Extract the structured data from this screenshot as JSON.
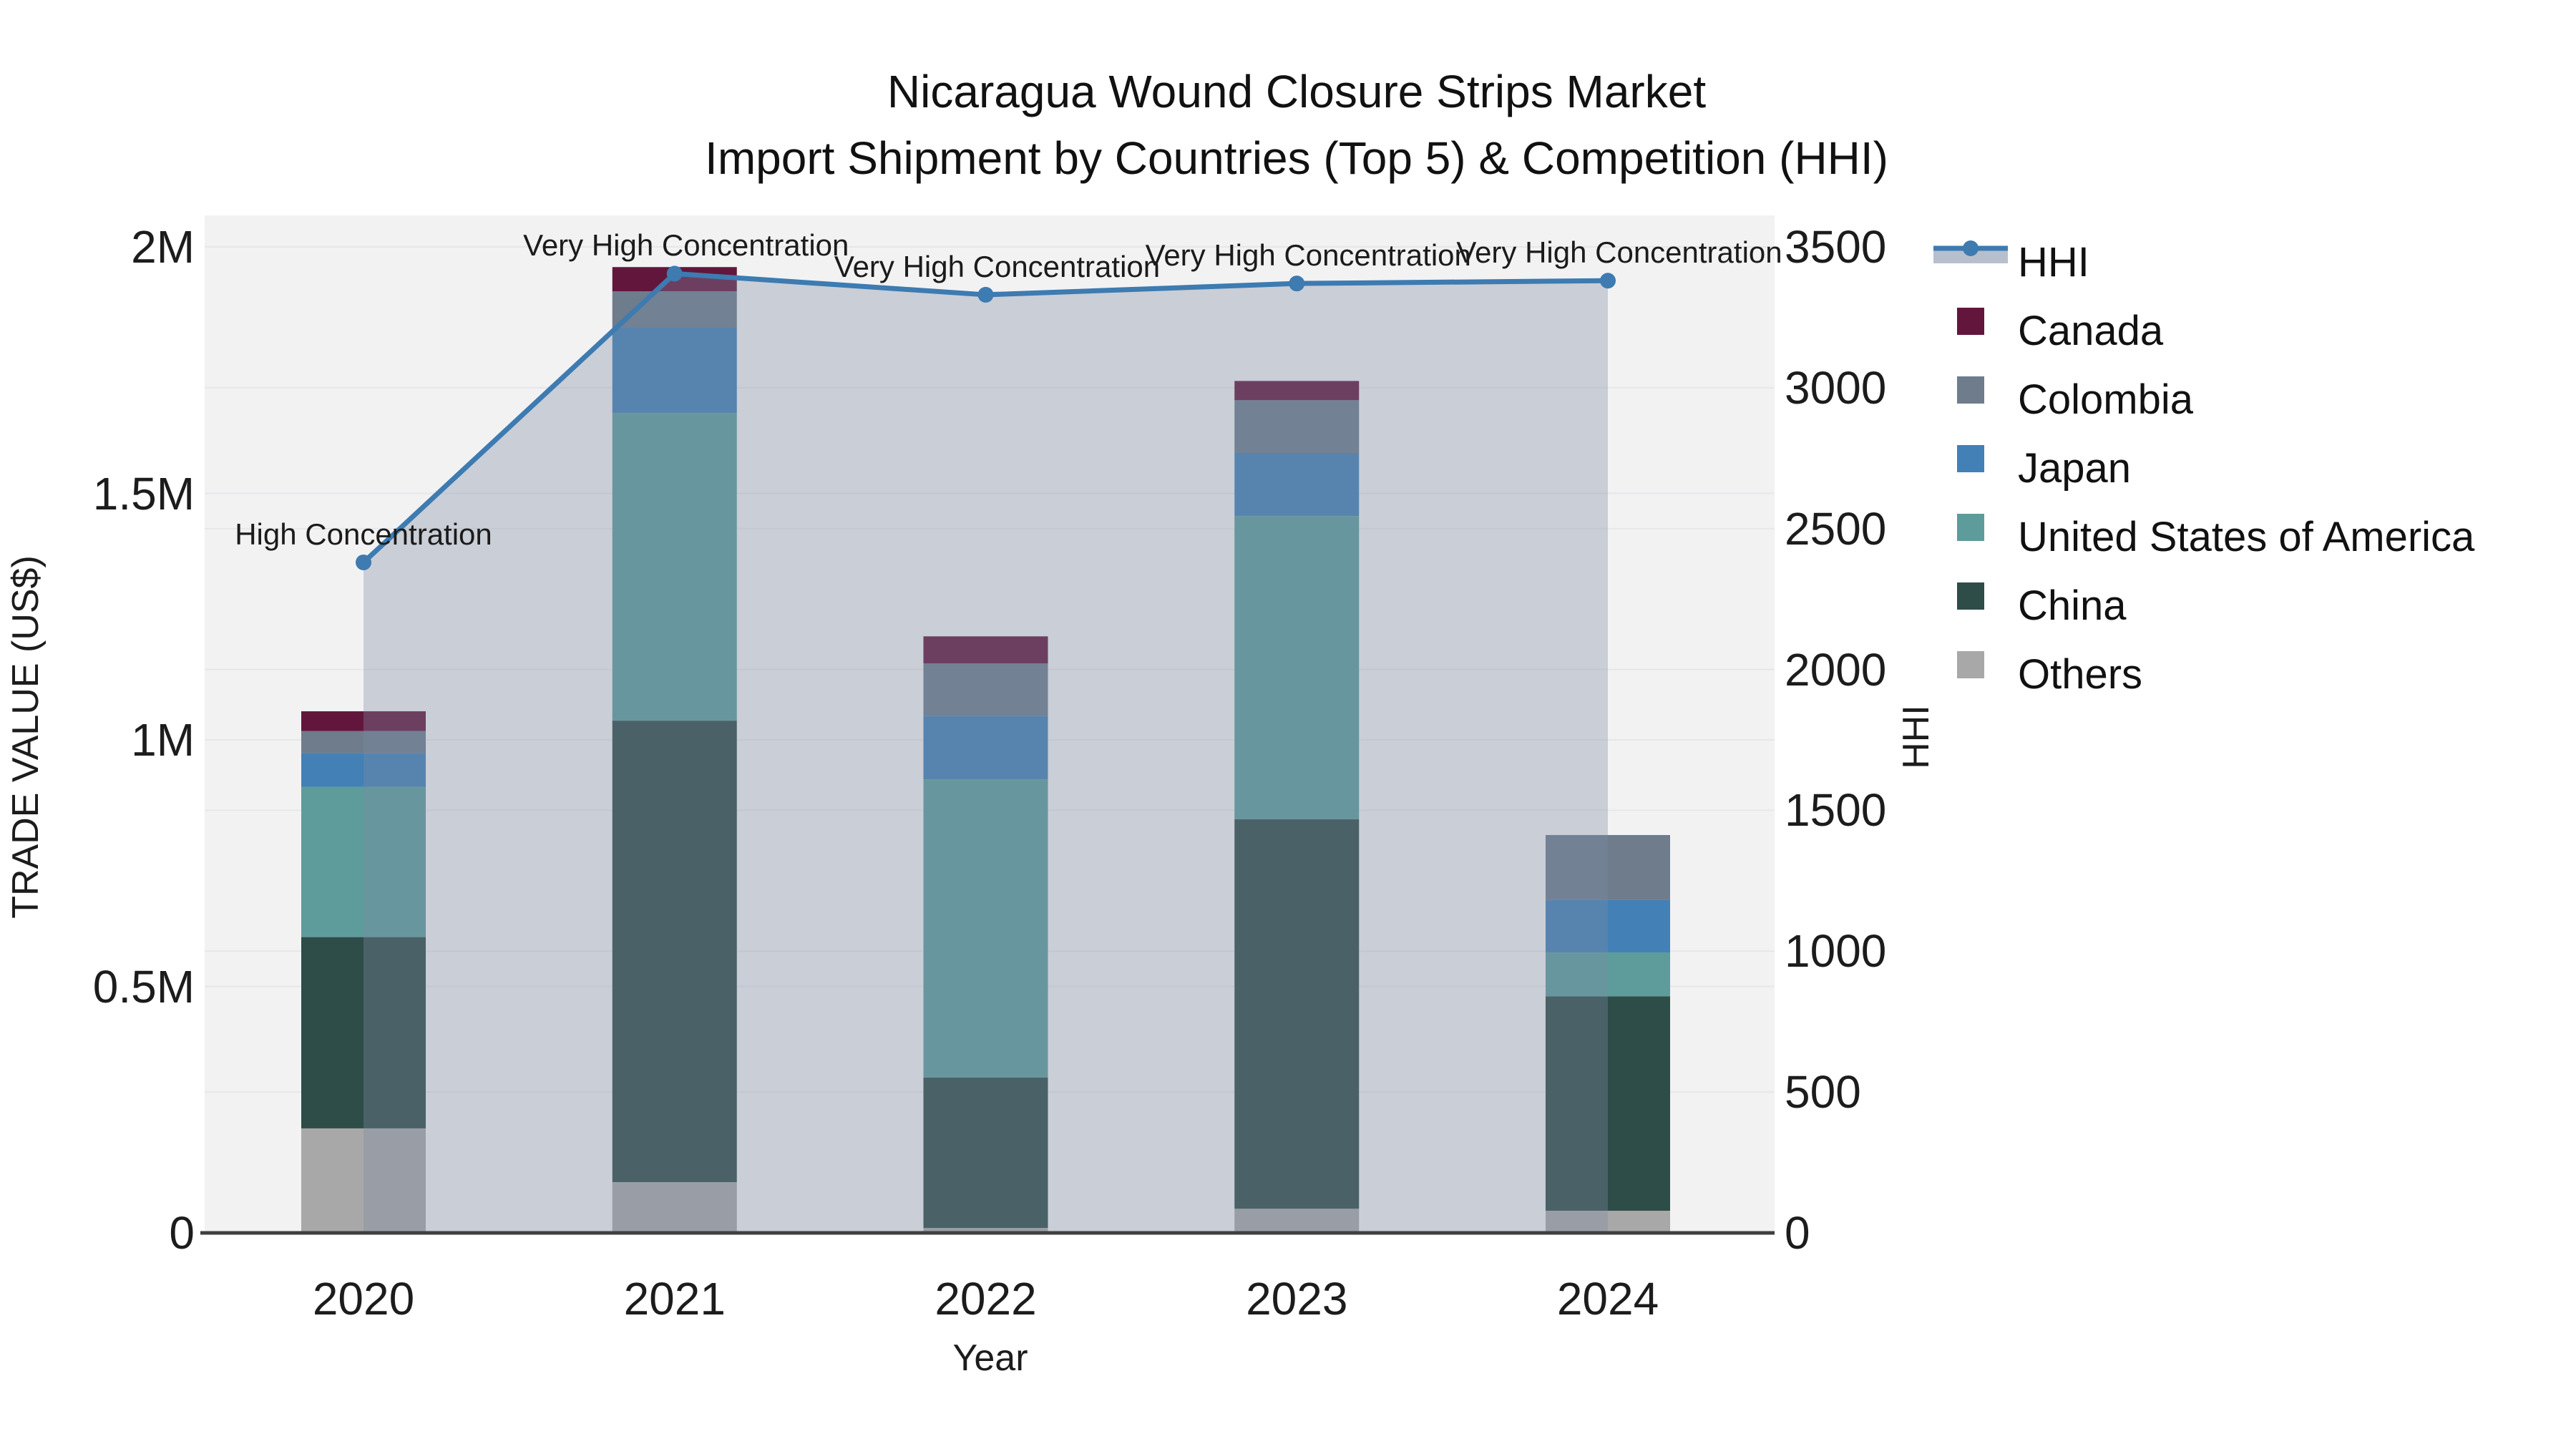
{
  "title": {
    "line1": "Nicaragua Wound Closure Strips Market",
    "line2": "Import Shipment by Countries (Top 5) & Competition (HHI)"
  },
  "axes": {
    "x": {
      "title": "Year",
      "ticks": [
        "2020",
        "2021",
        "2022",
        "2023",
        "2024"
      ]
    },
    "y_left": {
      "title": "TRADE VALUE (US$)",
      "ticks": [
        "0",
        "0.5M",
        "1M",
        "1.5M",
        "2M"
      ],
      "tick_values": [
        0,
        500000,
        1000000,
        1500000,
        2000000
      ],
      "max": 2000000
    },
    "y_right": {
      "title": "HHI",
      "ticks": [
        "0",
        "500",
        "1000",
        "1500",
        "2000",
        "2500",
        "3000",
        "3500"
      ],
      "tick_values": [
        0,
        500,
        1000,
        1500,
        2000,
        2500,
        3000,
        3500
      ],
      "max": 3500
    }
  },
  "legend": [
    {
      "label": "HHI",
      "type": "line",
      "color": "#3d7bb1"
    },
    {
      "label": "Canada",
      "type": "square",
      "color": "#63163c"
    },
    {
      "label": "Colombia",
      "type": "square",
      "color": "#6e7c8c"
    },
    {
      "label": "Japan",
      "type": "square",
      "color": "#4280b6"
    },
    {
      "label": "United States of America",
      "type": "square",
      "color": "#5d9c9b"
    },
    {
      "label": "China",
      "type": "square",
      "color": "#2e4c48"
    },
    {
      "label": "Others",
      "type": "square",
      "color": "#a8a8a8"
    }
  ],
  "annotations": [
    {
      "year": "2020",
      "text": "High Concentration"
    },
    {
      "year": "2021",
      "text": "Very High Concentration"
    },
    {
      "year": "2022",
      "text": "Very High Concentration"
    },
    {
      "year": "2023",
      "text": "Very High Concentration"
    },
    {
      "year": "2024",
      "text": "Very High Concentration"
    }
  ],
  "colors": {
    "hhi_line": "#3d7bb1",
    "hhi_area": "rgba(125,139,163,0.35)",
    "plot_bg": "#f2f2f3",
    "gridline": "#e6e7e9",
    "axis_line": "#3f3f3f"
  },
  "chart_data": {
    "type": "bar",
    "subtype": "stacked-bars-with-line",
    "title": "Nicaragua Wound Closure Strips Market — Import Shipment by Countries (Top 5) & Competition (HHI)",
    "xlabel": "Year",
    "ylabel_left": "TRADE VALUE (US$)",
    "ylabel_right": "HHI",
    "ylim_left": [
      0,
      2000000
    ],
    "ylim_right": [
      0,
      3500
    ],
    "grid": true,
    "legend_position": "right",
    "categories": [
      "2020",
      "2021",
      "2022",
      "2023",
      "2024"
    ],
    "series": [
      {
        "name": "Others",
        "color": "#a8a8a8",
        "values": [
          212000,
          103000,
          10000,
          49000,
          45000
        ]
      },
      {
        "name": "China",
        "color": "#2e4c48",
        "values": [
          388000,
          936000,
          305000,
          790000,
          435000
        ]
      },
      {
        "name": "United States of America",
        "color": "#5d9c9b",
        "values": [
          305000,
          624000,
          605000,
          615000,
          89000
        ]
      },
      {
        "name": "Japan",
        "color": "#4280b6",
        "values": [
          68000,
          173000,
          129000,
          128000,
          106000
        ]
      },
      {
        "name": "Colombia",
        "color": "#6e7c8c",
        "values": [
          45000,
          74000,
          106000,
          107000,
          132000
        ]
      },
      {
        "name": "Canada",
        "color": "#63163c",
        "values": [
          40000,
          49000,
          55000,
          39000,
          0
        ]
      }
    ],
    "line_series": {
      "name": "HHI",
      "color": "#3d7bb1",
      "area_fill": "rgba(125,139,163,0.35)",
      "values": [
        2380,
        3405,
        3330,
        3370,
        3380
      ]
    },
    "annotations": [
      "High Concentration",
      "Very High Concentration",
      "Very High Concentration",
      "Very High Concentration",
      "Very High Concentration"
    ]
  }
}
